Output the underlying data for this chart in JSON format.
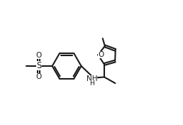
{
  "bg_color": "#ffffff",
  "line_color": "#1a1a1a",
  "line_width": 1.5,
  "fig_width": 2.58,
  "fig_height": 1.76,
  "dpi": 100,
  "xlim": [
    0,
    10
  ],
  "ylim": [
    0,
    7
  ]
}
